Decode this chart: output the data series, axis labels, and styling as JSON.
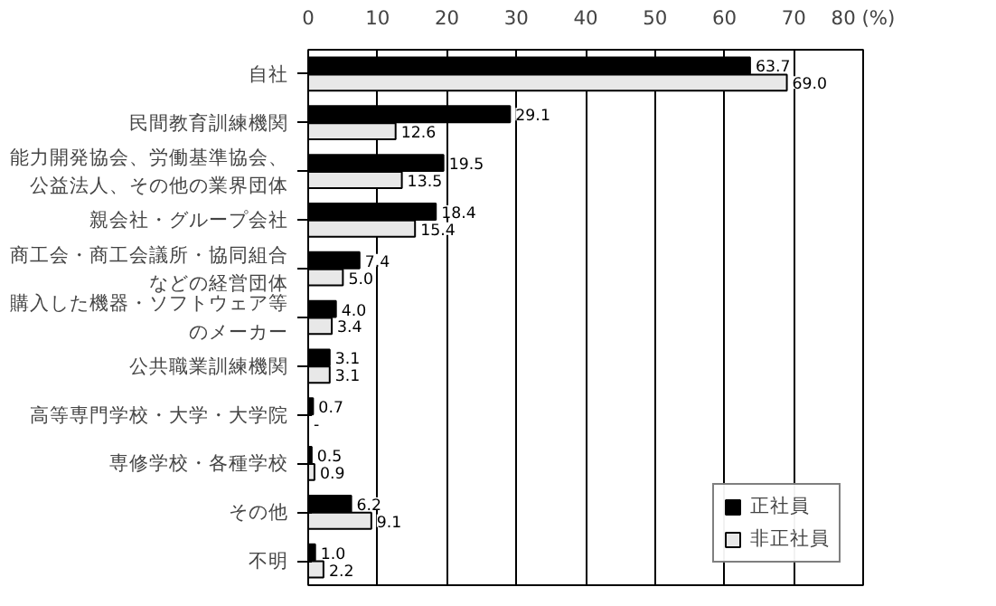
{
  "chart_data": {
    "type": "bar",
    "orientation": "horizontal",
    "categories": [
      "自社",
      "民間教育訓練機関",
      "能力開発協会、労働基準協会、公益法人、その他の業界団体",
      "親会社・グループ会社",
      "商工会・商工会議所・協同組合などの経営団体",
      "購入した機器・ソフトウェア等のメーカー",
      "公共職業訓練機関",
      "高等専門学校・大学・大学院",
      "専修学校・各種学校",
      "その他",
      "不明"
    ],
    "series": [
      {
        "name": "正社員",
        "color": "#000000",
        "values": [
          63.7,
          29.1,
          19.5,
          18.4,
          7.4,
          4.0,
          3.1,
          0.7,
          0.5,
          6.2,
          1.0
        ],
        "value_labels": [
          "63.7",
          "29.1",
          "19.5",
          "18.4",
          "7.4",
          "4.0",
          "3.1",
          "0.7",
          "0.5",
          "6.2",
          "1.0"
        ]
      },
      {
        "name": "非正社員",
        "color": "#e8e8e8",
        "values": [
          69.0,
          12.6,
          13.5,
          15.4,
          5.0,
          3.4,
          3.1,
          null,
          0.9,
          9.1,
          2.2
        ],
        "value_labels": [
          "69.0",
          "12.6",
          "13.5",
          "15.4",
          "5.0",
          "3.4",
          "3.1",
          "-",
          "0.9",
          "9.1",
          "2.2"
        ]
      }
    ],
    "xlim": [
      0,
      80
    ],
    "xticks": [
      0,
      10,
      20,
      30,
      40,
      50,
      60,
      70,
      {
        "value": 80,
        "label": "80 (%)"
      }
    ],
    "grid": "x",
    "legend": "bottom right"
  }
}
